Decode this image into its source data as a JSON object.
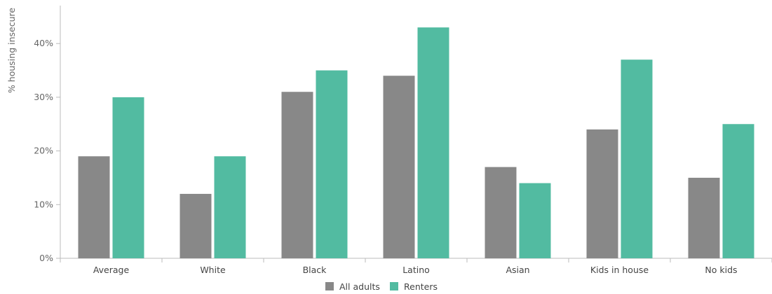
{
  "chart_data": {
    "type": "bar",
    "title": "",
    "xlabel": "",
    "ylabel": "% housing insecure",
    "ylim": [
      0,
      47
    ],
    "yticks": [
      0,
      10,
      20,
      30,
      40
    ],
    "ytick_labels": [
      "0%",
      "10%",
      "20%",
      "30%",
      "40%"
    ],
    "grid": false,
    "legend_position": "bottom-center",
    "categories": [
      "Average",
      "White",
      "Black",
      "Latino",
      "Asian",
      "Kids in house",
      "No kids"
    ],
    "series": [
      {
        "name": "All adults",
        "color": "#888888",
        "values": [
          19,
          12,
          31,
          34,
          17,
          24,
          15
        ]
      },
      {
        "name": "Renters",
        "color": "#52bba1",
        "values": [
          30,
          19,
          35,
          43,
          14,
          37,
          25
        ]
      }
    ]
  },
  "colors": {
    "axis": "#bbbbbb",
    "background": "#ffffff"
  }
}
